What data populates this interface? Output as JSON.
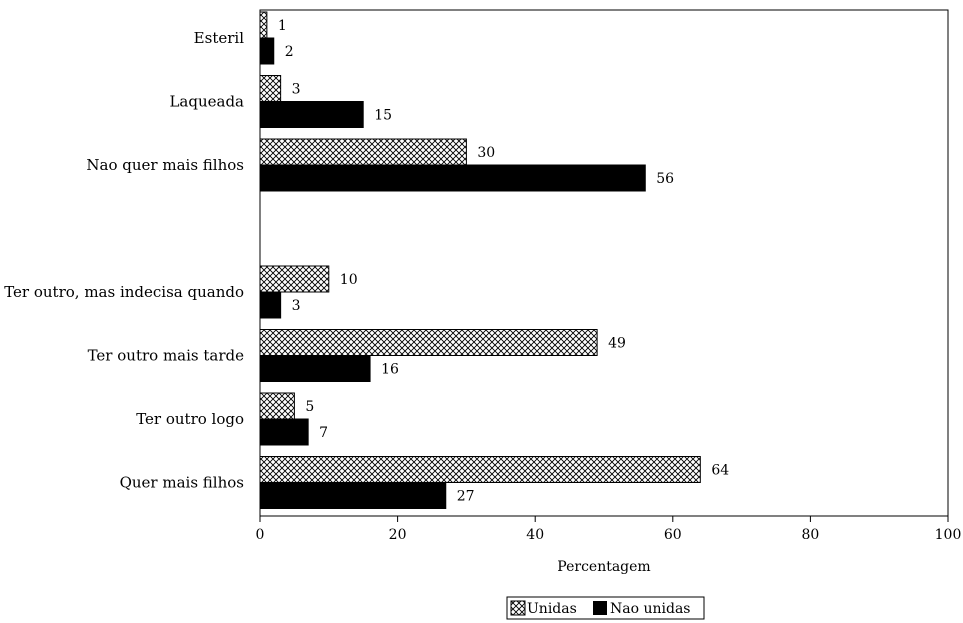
{
  "chart_data": {
    "type": "bar",
    "orientation": "horizontal",
    "categories": [
      "Esteril",
      "Laqueada",
      "Nao quer mais filhos",
      "",
      "Ter outro, mas indecisa quando",
      "Ter outro mais tarde",
      "Ter outro logo",
      "Quer mais filhos"
    ],
    "series": [
      {
        "name": "Unidas",
        "values": [
          1,
          3,
          30,
          null,
          10,
          49,
          5,
          64
        ],
        "pattern": "crosshatch",
        "color": "#000000"
      },
      {
        "name": "Nao unidas",
        "values": [
          2,
          15,
          56,
          null,
          3,
          16,
          7,
          27
        ],
        "pattern": "solid",
        "color": "#000000"
      }
    ],
    "xlabel": "Percentagem",
    "ylabel": "",
    "xlim": [
      0,
      100
    ],
    "xticks": [
      0,
      20,
      40,
      60,
      80,
      100
    ],
    "grid": false,
    "legend_position": "bottom-center"
  }
}
